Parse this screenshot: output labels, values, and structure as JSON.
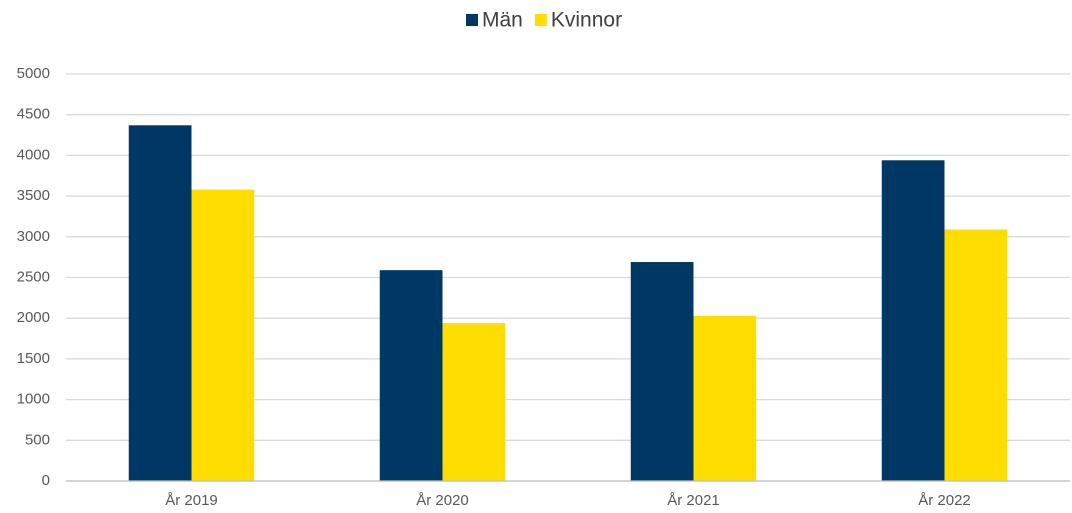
{
  "chart_data": {
    "type": "bar",
    "categories": [
      "År 2019",
      "År 2020",
      "År 2021",
      "År 2022"
    ],
    "series": [
      {
        "name": "Män",
        "color": "#003865",
        "values": [
          4370,
          2590,
          2690,
          3940
        ]
      },
      {
        "name": "Kvinnor",
        "color": "#ffdd00",
        "values": [
          3580,
          1940,
          2030,
          3090
        ]
      }
    ],
    "ylim": [
      0,
      5000
    ],
    "yticks": [
      0,
      500,
      1000,
      1500,
      2000,
      2500,
      3000,
      3500,
      4000,
      4500,
      5000
    ],
    "grid": true,
    "legend": "top"
  }
}
